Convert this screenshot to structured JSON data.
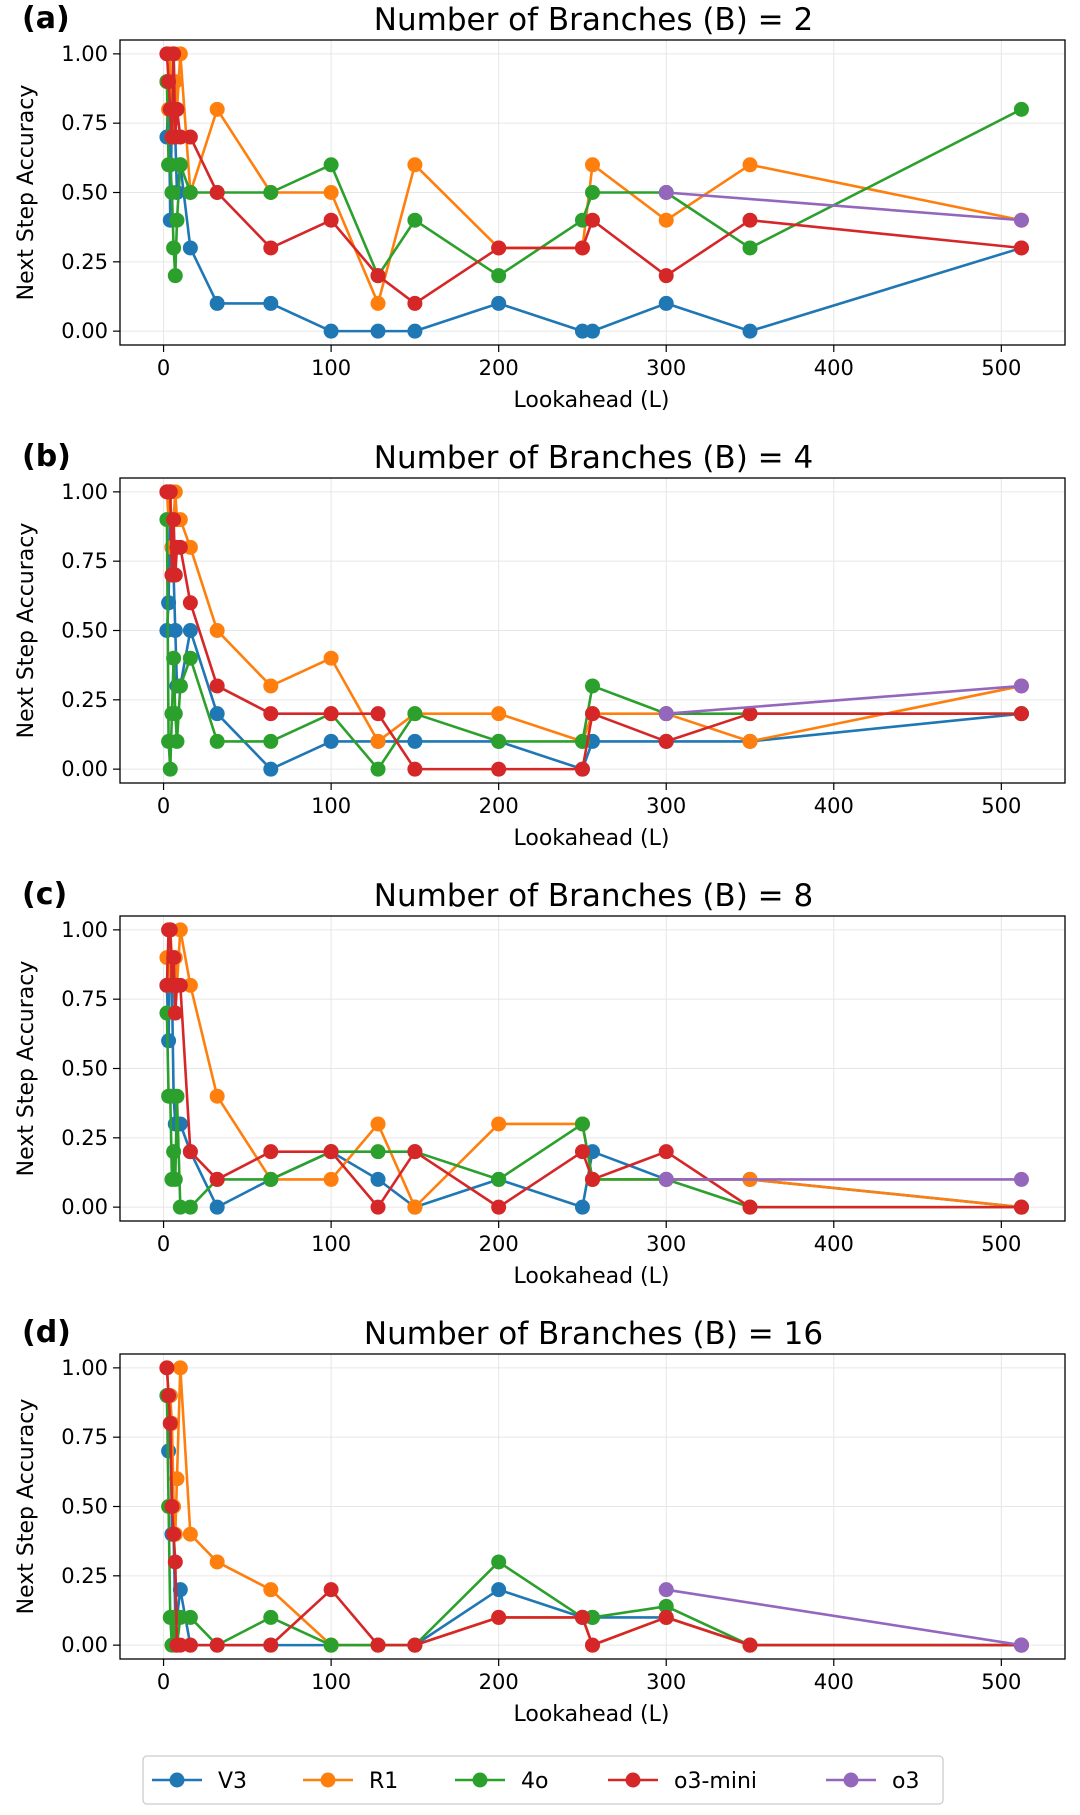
{
  "legend": {
    "items": [
      {
        "name": "V3",
        "color": "#1f77b4"
      },
      {
        "name": "R1",
        "color": "#ff7f0e"
      },
      {
        "name": "4o",
        "color": "#2ca02c"
      },
      {
        "name": "o3-mini",
        "color": "#d62728"
      },
      {
        "name": "o3",
        "color": "#9467bd"
      }
    ],
    "placement": "bottom-center"
  },
  "chart_data": [
    {
      "type": "line",
      "panel": "(a)",
      "title": "Number of Branches (B) = 2",
      "xlabel": "Lookahead (L)",
      "ylabel": "Next Step Accuracy",
      "xlim": [
        -26,
        538
      ],
      "ylim": [
        -0.05,
        1.05
      ],
      "xticks": [
        0,
        100,
        200,
        300,
        400,
        500
      ],
      "yticks": [
        0.0,
        0.25,
        0.5,
        0.75,
        1.0
      ],
      "ytick_labels": [
        "0.00",
        "0.25",
        "0.50",
        "0.75",
        "1.00"
      ],
      "grid": true,
      "series": [
        {
          "name": "V3",
          "x": [
            2,
            3,
            4,
            5,
            6,
            7,
            8,
            10,
            16,
            32,
            64,
            100,
            128,
            150,
            200,
            250,
            256,
            300,
            350,
            512
          ],
          "y": [
            0.7,
            0.9,
            0.4,
            0.8,
            1.0,
            0.7,
            0.5,
            0.6,
            0.3,
            0.1,
            0.1,
            0.0,
            0.0,
            0.0,
            0.1,
            0.0,
            0.0,
            0.1,
            0.0,
            0.3
          ]
        },
        {
          "name": "R1",
          "x": [
            2,
            3,
            4,
            5,
            6,
            7,
            8,
            10,
            16,
            32,
            64,
            100,
            128,
            150,
            200,
            250,
            256,
            300,
            350,
            512
          ],
          "y": [
            0.9,
            0.8,
            1.0,
            0.7,
            0.8,
            0.9,
            0.8,
            1.0,
            0.5,
            0.8,
            0.5,
            0.5,
            0.1,
            0.6,
            0.3,
            0.3,
            0.6,
            0.4,
            0.6,
            0.4
          ]
        },
        {
          "name": "4o",
          "x": [
            2,
            3,
            4,
            5,
            6,
            7,
            8,
            10,
            16,
            32,
            64,
            100,
            128,
            150,
            200,
            250,
            256,
            300,
            350,
            512
          ],
          "y": [
            0.9,
            0.6,
            0.6,
            0.5,
            0.3,
            0.2,
            0.4,
            0.6,
            0.5,
            0.5,
            0.5,
            0.6,
            0.2,
            0.4,
            0.2,
            0.4,
            0.5,
            0.5,
            0.3,
            0.8
          ]
        },
        {
          "name": "o3-mini",
          "x": [
            2,
            3,
            4,
            5,
            6,
            7,
            8,
            10,
            16,
            32,
            64,
            100,
            128,
            150,
            200,
            250,
            256,
            300,
            350,
            512
          ],
          "y": [
            1.0,
            0.9,
            0.8,
            0.7,
            1.0,
            0.7,
            0.8,
            0.7,
            0.7,
            0.5,
            0.3,
            0.4,
            0.2,
            0.1,
            0.3,
            0.3,
            0.4,
            0.2,
            0.4,
            0.3
          ]
        },
        {
          "name": "o3",
          "x": [
            300,
            512
          ],
          "y": [
            0.5,
            0.4
          ]
        }
      ]
    },
    {
      "type": "line",
      "panel": "(b)",
      "title": "Number of Branches (B) = 4",
      "xlabel": "Lookahead (L)",
      "ylabel": "Next Step Accuracy",
      "xlim": [
        -26,
        538
      ],
      "ylim": [
        -0.05,
        1.05
      ],
      "xticks": [
        0,
        100,
        200,
        300,
        400,
        500
      ],
      "yticks": [
        0.0,
        0.25,
        0.5,
        0.75,
        1.0
      ],
      "ytick_labels": [
        "0.00",
        "0.25",
        "0.50",
        "0.75",
        "1.00"
      ],
      "grid": true,
      "series": [
        {
          "name": "V3",
          "x": [
            2,
            3,
            4,
            5,
            6,
            7,
            8,
            10,
            16,
            32,
            64,
            100,
            128,
            150,
            200,
            250,
            256,
            300,
            350,
            512
          ],
          "y": [
            0.5,
            0.6,
            1.0,
            0.8,
            0.7,
            0.5,
            0.3,
            0.3,
            0.5,
            0.2,
            0.0,
            0.1,
            0.1,
            0.1,
            0.1,
            0.0,
            0.1,
            0.1,
            0.1,
            0.2
          ]
        },
        {
          "name": "R1",
          "x": [
            2,
            3,
            4,
            5,
            6,
            7,
            8,
            10,
            16,
            32,
            64,
            100,
            128,
            150,
            200,
            250,
            256,
            300,
            350,
            512
          ],
          "y": [
            1.0,
            0.9,
            1.0,
            0.8,
            0.9,
            1.0,
            0.9,
            0.9,
            0.8,
            0.5,
            0.3,
            0.4,
            0.1,
            0.2,
            0.2,
            0.1,
            0.2,
            0.2,
            0.1,
            0.3
          ]
        },
        {
          "name": "4o",
          "x": [
            2,
            3,
            4,
            5,
            6,
            7,
            8,
            10,
            16,
            32,
            64,
            100,
            128,
            150,
            200,
            250,
            256,
            300,
            350,
            512
          ],
          "y": [
            0.9,
            0.1,
            0.0,
            0.2,
            0.4,
            0.2,
            0.1,
            0.3,
            0.4,
            0.1,
            0.1,
            0.2,
            0.0,
            0.2,
            0.1,
            0.1,
            0.3,
            0.2,
            0.2,
            0.2
          ]
        },
        {
          "name": "o3-mini",
          "x": [
            2,
            3,
            4,
            5,
            6,
            7,
            8,
            10,
            16,
            32,
            64,
            100,
            128,
            150,
            200,
            250,
            256,
            300,
            350,
            512
          ],
          "y": [
            1.0,
            1.0,
            1.0,
            0.7,
            0.9,
            0.7,
            0.8,
            0.8,
            0.6,
            0.3,
            0.2,
            0.2,
            0.2,
            0.0,
            0.0,
            0.0,
            0.2,
            0.1,
            0.2,
            0.2
          ]
        },
        {
          "name": "o3",
          "x": [
            300,
            512
          ],
          "y": [
            0.2,
            0.3
          ]
        }
      ]
    },
    {
      "type": "line",
      "panel": "(c)",
      "title": "Number of Branches (B) = 8",
      "xlabel": "Lookahead (L)",
      "ylabel": "Next Step Accuracy",
      "xlim": [
        -26,
        538
      ],
      "ylim": [
        -0.05,
        1.05
      ],
      "xticks": [
        0,
        100,
        200,
        300,
        400,
        500
      ],
      "yticks": [
        0.0,
        0.25,
        0.5,
        0.75,
        1.0
      ],
      "ytick_labels": [
        "0.00",
        "0.25",
        "0.50",
        "0.75",
        "1.00"
      ],
      "grid": true,
      "series": [
        {
          "name": "V3",
          "x": [
            2,
            3,
            4,
            5,
            6,
            7,
            8,
            10,
            16,
            32,
            64,
            100,
            128,
            150,
            200,
            250,
            256,
            300,
            350,
            512
          ],
          "y": [
            0.8,
            0.6,
            1.0,
            0.8,
            0.4,
            0.3,
            0.3,
            0.3,
            0.2,
            0.0,
            0.1,
            0.2,
            0.1,
            0.0,
            0.1,
            0.0,
            0.2,
            0.1,
            0.1,
            0.0
          ]
        },
        {
          "name": "R1",
          "x": [
            2,
            3,
            4,
            5,
            6,
            7,
            8,
            10,
            16,
            32,
            64,
            100,
            128,
            150,
            200,
            250,
            256,
            300,
            350,
            512
          ],
          "y": [
            0.9,
            0.8,
            1.0,
            0.9,
            0.8,
            0.9,
            0.8,
            1.0,
            0.8,
            0.4,
            0.1,
            0.1,
            0.3,
            0.0,
            0.3,
            0.3,
            0.1,
            0.1,
            0.1,
            0.0
          ]
        },
        {
          "name": "4o",
          "x": [
            2,
            3,
            4,
            5,
            6,
            7,
            8,
            10,
            16,
            32,
            64,
            100,
            128,
            150,
            200,
            250,
            256,
            300,
            350,
            512
          ],
          "y": [
            0.7,
            0.4,
            0.4,
            0.1,
            0.2,
            0.1,
            0.4,
            0.0,
            0.0,
            0.1,
            0.1,
            0.2,
            0.2,
            0.2,
            0.1,
            0.3,
            0.1,
            0.1,
            0.0,
            0.0
          ]
        },
        {
          "name": "o3-mini",
          "x": [
            2,
            3,
            4,
            5,
            6,
            7,
            8,
            10,
            16,
            32,
            64,
            100,
            128,
            150,
            200,
            250,
            256,
            300,
            350,
            512
          ],
          "y": [
            0.8,
            1.0,
            1.0,
            0.8,
            0.9,
            0.7,
            0.8,
            0.8,
            0.2,
            0.1,
            0.2,
            0.2,
            0.0,
            0.2,
            0.0,
            0.2,
            0.1,
            0.2,
            0.0,
            0.0
          ]
        },
        {
          "name": "o3",
          "x": [
            300,
            512
          ],
          "y": [
            0.1,
            0.1
          ]
        }
      ]
    },
    {
      "type": "line",
      "panel": "(d)",
      "title": "Number of Branches (B) = 16",
      "xlabel": "Lookahead (L)",
      "ylabel": "Next Step Accuracy",
      "xlim": [
        -26,
        538
      ],
      "ylim": [
        -0.05,
        1.05
      ],
      "xticks": [
        0,
        100,
        200,
        300,
        400,
        500
      ],
      "yticks": [
        0.0,
        0.25,
        0.5,
        0.75,
        1.0
      ],
      "ytick_labels": [
        "0.00",
        "0.25",
        "0.50",
        "0.75",
        "1.00"
      ],
      "grid": true,
      "series": [
        {
          "name": "V3",
          "x": [
            2,
            3,
            4,
            5,
            6,
            7,
            8,
            10,
            16,
            32,
            64,
            100,
            128,
            150,
            200,
            250,
            256,
            300,
            350,
            512
          ],
          "y": [
            0.9,
            0.7,
            0.9,
            0.4,
            0.4,
            0.1,
            0.1,
            0.2,
            0.0,
            0.0,
            0.0,
            0.0,
            0.0,
            0.0,
            0.2,
            0.1,
            0.1,
            0.1,
            0.0,
            0.0
          ]
        },
        {
          "name": "R1",
          "x": [
            2,
            3,
            4,
            5,
            6,
            7,
            8,
            10,
            16,
            32,
            64,
            100,
            128,
            150,
            200,
            250,
            256,
            300,
            350,
            512
          ],
          "y": [
            1.0,
            0.9,
            0.9,
            0.8,
            0.5,
            0.4,
            0.6,
            1.0,
            0.4,
            0.3,
            0.2,
            0.0,
            0.0,
            0.0,
            0.1,
            0.1,
            0.0,
            0.1,
            0.0,
            0.0
          ]
        },
        {
          "name": "4o",
          "x": [
            2,
            3,
            4,
            5,
            6,
            7,
            8,
            10,
            16,
            32,
            64,
            100,
            128,
            150,
            200,
            250,
            256,
            300,
            350,
            512
          ],
          "y": [
            0.9,
            0.5,
            0.1,
            0.0,
            0.1,
            0.0,
            0.0,
            0.1,
            0.1,
            0.0,
            0.1,
            0.0,
            0.0,
            0.0,
            0.3,
            0.1,
            0.1,
            0.14,
            0.0,
            0.0
          ]
        },
        {
          "name": "o3-mini",
          "x": [
            2,
            3,
            4,
            5,
            6,
            7,
            8,
            10,
            16,
            32,
            64,
            100,
            128,
            150,
            200,
            250,
            256,
            300,
            350,
            512
          ],
          "y": [
            1.0,
            0.9,
            0.8,
            0.5,
            0.4,
            0.3,
            0.0,
            0.0,
            0.0,
            0.0,
            0.0,
            0.2,
            0.0,
            0.0,
            0.1,
            0.1,
            0.0,
            0.1,
            0.0,
            0.0
          ]
        },
        {
          "name": "o3",
          "x": [
            300,
            512
          ],
          "y": [
            0.2,
            0.0
          ]
        }
      ]
    }
  ]
}
